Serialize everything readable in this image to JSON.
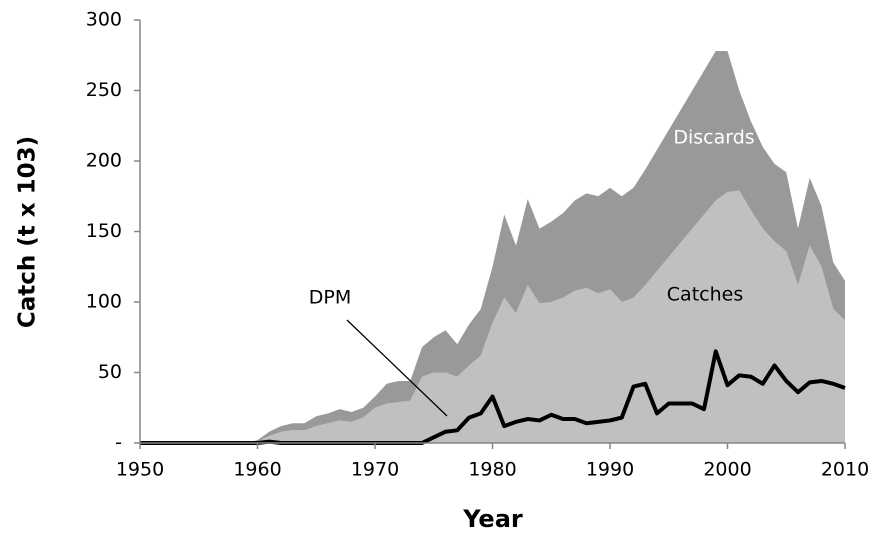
{
  "chart_data": {
    "type": "area",
    "stacked": true,
    "xlabel": "Year",
    "ylabel": "Catch (t x 103)",
    "x": [
      1950,
      1951,
      1952,
      1953,
      1954,
      1955,
      1956,
      1957,
      1958,
      1959,
      1960,
      1961,
      1962,
      1963,
      1964,
      1965,
      1966,
      1967,
      1968,
      1969,
      1970,
      1971,
      1972,
      1973,
      1974,
      1975,
      1976,
      1977,
      1978,
      1979,
      1980,
      1981,
      1982,
      1983,
      1984,
      1985,
      1986,
      1987,
      1988,
      1989,
      1990,
      1991,
      1992,
      1993,
      1994,
      1995,
      1996,
      1997,
      1998,
      1999,
      2000,
      2001,
      2002,
      2003,
      2004,
      2005,
      2006,
      2007,
      2008,
      2009,
      2010
    ],
    "series": [
      {
        "name": "Catches",
        "color": "#c0c0c0",
        "type": "area",
        "values": [
          0,
          0,
          0,
          0,
          0,
          0,
          0,
          0,
          0,
          0,
          1,
          5,
          8,
          9,
          9,
          12,
          14,
          16,
          15,
          18,
          25,
          28,
          29,
          30,
          47,
          50,
          50,
          47,
          55,
          62,
          85,
          103,
          92,
          112,
          99,
          100,
          103,
          108,
          110,
          106,
          109,
          100,
          103,
          112,
          122,
          132,
          142,
          152,
          162,
          172,
          178,
          179,
          165,
          152,
          143,
          136,
          112,
          140,
          125,
          95,
          87
        ]
      },
      {
        "name": "Discards",
        "color": "#999999",
        "type": "area",
        "values": [
          0,
          0,
          0,
          0,
          0,
          0,
          0,
          0,
          0,
          0,
          1,
          3,
          4,
          5,
          5,
          7,
          7,
          8,
          7,
          7,
          8,
          14,
          15,
          14,
          21,
          25,
          30,
          23,
          29,
          33,
          40,
          59,
          48,
          61,
          53,
          57,
          60,
          64,
          67,
          69,
          72,
          75,
          78,
          82,
          86,
          90,
          94,
          98,
          102,
          106,
          100,
          71,
          63,
          58,
          55,
          56,
          40,
          48,
          43,
          33,
          28
        ]
      },
      {
        "name": "DPM",
        "color": "#000000",
        "type": "line",
        "values": [
          0,
          0,
          0,
          0,
          0,
          0,
          0,
          0,
          0,
          0,
          0,
          1,
          0,
          0,
          0,
          0,
          0,
          0,
          0,
          0,
          0,
          0,
          0,
          0,
          0,
          4,
          8,
          9,
          18,
          21,
          33,
          12,
          15,
          17,
          16,
          20,
          17,
          17,
          14,
          15,
          16,
          18,
          40,
          42,
          21,
          28,
          28,
          28,
          24,
          65,
          41,
          48,
          47,
          42,
          55,
          44,
          36,
          43,
          44,
          42,
          39
        ]
      }
    ],
    "xlim": [
      1950,
      2010
    ],
    "xticks": [
      1950,
      1960,
      1970,
      1980,
      1990,
      2000,
      2010
    ],
    "ylim": [
      0,
      300
    ],
    "yticks": [
      {
        "value": 0,
        "label": "-"
      },
      50,
      100,
      150,
      200,
      250,
      300
    ]
  }
}
